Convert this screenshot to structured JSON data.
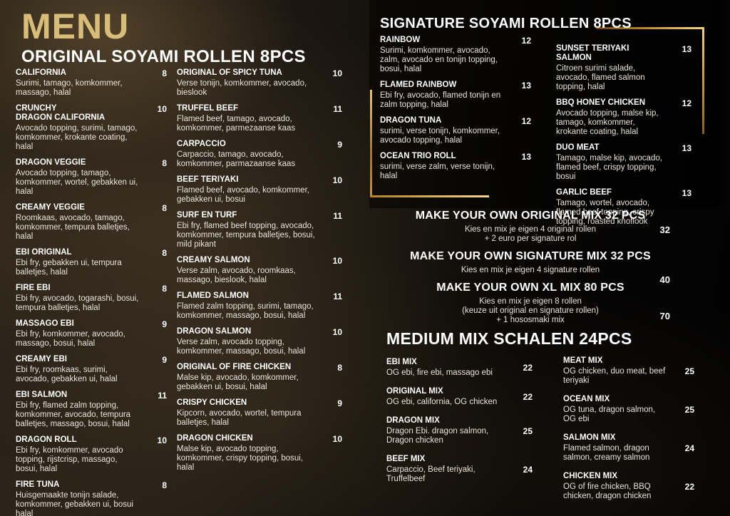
{
  "page_title": "MENU",
  "colors": {
    "title_gold": "#d8bc79",
    "line_gold": "#e9bf62",
    "heading_text": "#ffffff",
    "description_text": "#e8e3da"
  },
  "sections": {
    "original": {
      "header": "ORIGINAL SOYAMI ROLLEN 8PCS",
      "col1": [
        {
          "name": "CALIFORNIA",
          "desc": "Surimi, tamago, komkommer, massago, halal",
          "price": "8"
        },
        {
          "name": "CRUNCHY\nDRAGON CALIFORNIA",
          "desc": "Avocado topping, surimi, tamago, komkommer, krokante coating, halal",
          "price": "10"
        },
        {
          "name": "DRAGON VEGGIE",
          "desc": "Avocado topping, tamago, komkommer, wortel, gebakken ui, halal",
          "price": "8"
        },
        {
          "name": "CREAMY VEGGIE",
          "desc": "Roomkaas, avocado, tamago, komkommer, tempura balletjes, halal",
          "price": "8"
        },
        {
          "name": "EBI ORIGINAL",
          "desc": "Ebi fry, gebakken ui, tempura balletjes, halal",
          "price": "8"
        },
        {
          "name": "FIRE EBI",
          "desc": "Ebi fry, avocado, togarashi, bosui, tempura balletjes, halal",
          "price": "8"
        },
        {
          "name": "MASSAGO EBI",
          "desc": "Ebi fry, komkommer, avocado, massago, bosui, halal",
          "price": "9"
        },
        {
          "name": "CREAMY EBI",
          "desc": "Ebi fry, roomkaas, surimi, avocado, gebakken ui, halal",
          "price": "9"
        },
        {
          "name": "EBI SALMON",
          "desc": "Ebi fry, flamed zalm topping, komkommer, avocado, tempura balletjes, massago, bosui, halal",
          "price": "11"
        },
        {
          "name": "DRAGON ROLL",
          "desc": "Ebi fry, komkommer, avocado topping, rijstcrisp, massago, bosui, halal",
          "price": "10"
        },
        {
          "name": "FIRE TUNA",
          "desc": "Huisgemaakte tonijn salade, komkommer, gebakken ui, bosui halal",
          "price": "8"
        }
      ],
      "col2": [
        {
          "name": "ORIGINAL OF SPICY TUNA",
          "desc": "Verse tonijn, komkommer, avocado, bieslook",
          "price": "10"
        },
        {
          "name": "TRUFFEL BEEF",
          "desc": "Flamed beef, tamago, avocado, komkommer, parmezaanse kaas",
          "price": "11"
        },
        {
          "name": "CARPACCIO",
          "desc": "Carpaccio, tamago, avocado, komkommer, parmazaanse kaas",
          "price": "9"
        },
        {
          "name": "BEEF TERIYAKI",
          "desc": "Flamed beef, avocado, komkommer, gebakken ui, bosui",
          "price": "10"
        },
        {
          "name": "SURF EN TURF",
          "desc": "Ebi fry, flamed beef topping, avocado, komkommer, tempura balletjes, bosui, mild pikant",
          "price": "11"
        },
        {
          "name": "CREAMY SALMON",
          "desc": "Verse zalm, avocado, roomkaas, massago, bieslook, halal",
          "price": "10"
        },
        {
          "name": "FLAMED SALMON",
          "desc": "Flamed zalm topping, surimi, tamago, komkommer, massago, bosui, halal",
          "price": "11"
        },
        {
          "name": "DRAGON SALMON",
          "desc": "Verse zalm, avocado topping, komkommer, massago, bosui, halal",
          "price": "10"
        },
        {
          "name": "ORIGINAL OF FIRE CHICKEN",
          "desc": "Malse kip, avocado, komkommer, gebakken ui, bosui, halal",
          "price": "8"
        },
        {
          "name": "CRISPY CHICKEN",
          "desc": "Kipcorn, avocado, wortel, tempura balletjes, halal",
          "price": "9"
        },
        {
          "name": "DRAGON CHICKEN",
          "desc": "Malse kip, avocado topping, komkommer, crispy topping, bosui, halal",
          "price": "10"
        }
      ]
    },
    "signature": {
      "header": "SIGNATURE SOYAMI ROLLEN 8PCS",
      "col1": [
        {
          "name": "RAINBOW",
          "desc": "Surimi, komkommer, avocado, zalm, avocado en tonijn topping, bosui, halal",
          "price": "12"
        },
        {
          "name": "FLAMED RAINBOW",
          "desc": "Ebi fry, avocado, flamed tonijn en zalm topping, halal",
          "price": "13"
        },
        {
          "name": "DRAGON TUNA",
          "desc": "surimi, verse tonijn, komkommer, avocado topping, halal",
          "price": "12"
        },
        {
          "name": "OCEAN TRIO ROLL",
          "desc": "surimi, verse zalm, verse tonijn, halal",
          "price": "13"
        }
      ],
      "col2": [
        {
          "name": "SUNSET TERIYAKI SALMON",
          "desc": "Citroen surimi salade, avocado, flamed salmon topping, halal",
          "price": "13"
        },
        {
          "name": "BBQ HONEY CHICKEN",
          "desc": "Avocado topping, malse kip, tamago, komkommer, krokante coating, halal",
          "price": "12"
        },
        {
          "name": "DUO MEAT",
          "desc": "Tamago, malse kip, avocado, flamed beef, crispy topping, bosui",
          "price": "13"
        },
        {
          "name": "GARLIC BEEF",
          "desc": "Tamago, wortel, avocado, flamed beef topping, crispy topping, roasted knoflook",
          "price": "13"
        }
      ]
    },
    "make_your_own": {
      "blocks": [
        {
          "name": "MAKE YOUR OWN ORIGINAL MIX 32 PCS",
          "desc": "Kies en mix je eigen 4 original rollen\n+ 2 euro per signature rol",
          "price": "32"
        },
        {
          "name": "MAKE YOUR OWN SIGNATURE MIX 32 PCS",
          "desc": "Kies en mix je eigen 4 signature rollen",
          "price": "40"
        },
        {
          "name": "MAKE YOUR OWN XL MIX 80 PCS",
          "desc": "Kies en mix je eigen 8 rollen\n(keuze uit original en signature rollen)\n+ 1 hososmaki mix",
          "price": "70"
        }
      ]
    },
    "medium_mix": {
      "header": "MEDIUM MIX SCHALEN 24PCS",
      "col1": [
        {
          "name": "EBI MIX",
          "desc": "OG ebi, fire ebi, massago ebi",
          "price": "22"
        },
        {
          "name": "ORIGINAL MIX",
          "desc": "OG ebi, california, OG chicken",
          "price": "22"
        },
        {
          "name": "DRAGON MIX",
          "desc": "Dragon Ebi. dragon salmon, Dragon chicken",
          "price": "25"
        },
        {
          "name": "BEEF MIX",
          "desc": "Carpaccio, Beef teriyaki, Truffelbeef",
          "price": "24"
        }
      ],
      "col2": [
        {
          "name": "MEAT MIX",
          "desc": "OG chicken, duo meat, beef teriyaki",
          "price": "25"
        },
        {
          "name": "OCEAN MIX",
          "desc": "OG tuna, dragon salmon, OG ebi",
          "price": "25"
        },
        {
          "name": "SALMON MIX",
          "desc": "Flamed salmon, dragon salmon, creamy salmon",
          "price": "24"
        },
        {
          "name": "CHICKEN MIX",
          "desc": "OG of fire chicken, BBQ chicken, dragon chicken",
          "price": "22"
        }
      ]
    }
  }
}
